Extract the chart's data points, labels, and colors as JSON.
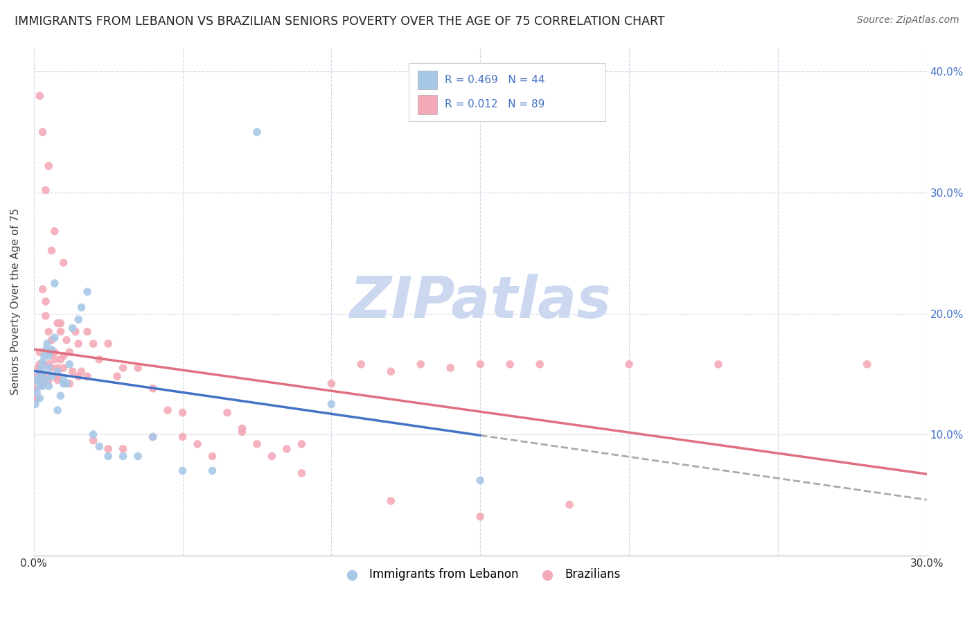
{
  "title": "IMMIGRANTS FROM LEBANON VS BRAZILIAN SENIORS POVERTY OVER THE AGE OF 75 CORRELATION CHART",
  "source": "Source: ZipAtlas.com",
  "ylabel": "Seniors Poverty Over the Age of 75",
  "xlim": [
    0,
    0.3
  ],
  "ylim": [
    0,
    0.42
  ],
  "R_lebanon": 0.469,
  "N_lebanon": 44,
  "R_brazil": 0.012,
  "N_brazil": 89,
  "lebanon_color": "#a8c8e8",
  "brazil_color": "#f4aab8",
  "lebanon_line_color": "#4472c4",
  "brazil_line_color": "#e07080",
  "dashed_line_color": "#aaaaaa",
  "background_color": "#ffffff",
  "grid_color": "#d0d8e8",
  "watermark_color": "#ccd8ef",
  "lebanon_scatter_x": [
    0.0005,
    0.001,
    0.001,
    0.0015,
    0.002,
    0.002,
    0.002,
    0.0025,
    0.003,
    0.003,
    0.003,
    0.0035,
    0.004,
    0.004,
    0.0045,
    0.005,
    0.005,
    0.005,
    0.006,
    0.006,
    0.007,
    0.007,
    0.008,
    0.008,
    0.009,
    0.01,
    0.01,
    0.011,
    0.012,
    0.013,
    0.015,
    0.016,
    0.018,
    0.02,
    0.022,
    0.025,
    0.03,
    0.035,
    0.04,
    0.05,
    0.06,
    0.075,
    0.1,
    0.15
  ],
  "lebanon_scatter_y": [
    0.125,
    0.135,
    0.145,
    0.145,
    0.13,
    0.14,
    0.15,
    0.155,
    0.14,
    0.15,
    0.16,
    0.165,
    0.145,
    0.17,
    0.175,
    0.14,
    0.155,
    0.165,
    0.148,
    0.17,
    0.18,
    0.225,
    0.12,
    0.152,
    0.132,
    0.145,
    0.142,
    0.142,
    0.158,
    0.188,
    0.195,
    0.205,
    0.218,
    0.1,
    0.09,
    0.082,
    0.082,
    0.082,
    0.098,
    0.07,
    0.07,
    0.35,
    0.125,
    0.062
  ],
  "brazil_scatter_x": [
    0.0005,
    0.001,
    0.001,
    0.0015,
    0.002,
    0.002,
    0.002,
    0.003,
    0.003,
    0.003,
    0.003,
    0.004,
    0.004,
    0.004,
    0.005,
    0.005,
    0.005,
    0.006,
    0.006,
    0.006,
    0.007,
    0.007,
    0.008,
    0.008,
    0.009,
    0.009,
    0.01,
    0.01,
    0.011,
    0.012,
    0.013,
    0.014,
    0.015,
    0.016,
    0.018,
    0.02,
    0.022,
    0.025,
    0.028,
    0.03,
    0.035,
    0.04,
    0.045,
    0.05,
    0.055,
    0.06,
    0.065,
    0.07,
    0.075,
    0.08,
    0.085,
    0.09,
    0.1,
    0.11,
    0.12,
    0.13,
    0.14,
    0.15,
    0.16,
    0.17,
    0.002,
    0.003,
    0.004,
    0.005,
    0.006,
    0.007,
    0.008,
    0.009,
    0.01,
    0.012,
    0.015,
    0.018,
    0.02,
    0.025,
    0.03,
    0.04,
    0.05,
    0.07,
    0.09,
    0.12,
    0.15,
    0.18,
    0.2,
    0.23,
    0.28,
    0.002,
    0.003,
    0.005,
    0.008
  ],
  "brazil_scatter_y": [
    0.138,
    0.148,
    0.13,
    0.155,
    0.168,
    0.158,
    0.152,
    0.158,
    0.148,
    0.142,
    0.22,
    0.21,
    0.198,
    0.168,
    0.158,
    0.148,
    0.185,
    0.168,
    0.155,
    0.178,
    0.168,
    0.162,
    0.155,
    0.148,
    0.162,
    0.185,
    0.165,
    0.155,
    0.178,
    0.168,
    0.152,
    0.185,
    0.175,
    0.152,
    0.185,
    0.175,
    0.162,
    0.175,
    0.148,
    0.155,
    0.155,
    0.138,
    0.12,
    0.118,
    0.092,
    0.082,
    0.118,
    0.102,
    0.092,
    0.082,
    0.088,
    0.092,
    0.142,
    0.158,
    0.152,
    0.158,
    0.155,
    0.158,
    0.158,
    0.158,
    0.38,
    0.35,
    0.302,
    0.322,
    0.252,
    0.268,
    0.192,
    0.192,
    0.242,
    0.142,
    0.148,
    0.148,
    0.095,
    0.088,
    0.088,
    0.098,
    0.098,
    0.105,
    0.068,
    0.045,
    0.032,
    0.042,
    0.158,
    0.158,
    0.158,
    0.145,
    0.145,
    0.145,
    0.145
  ]
}
